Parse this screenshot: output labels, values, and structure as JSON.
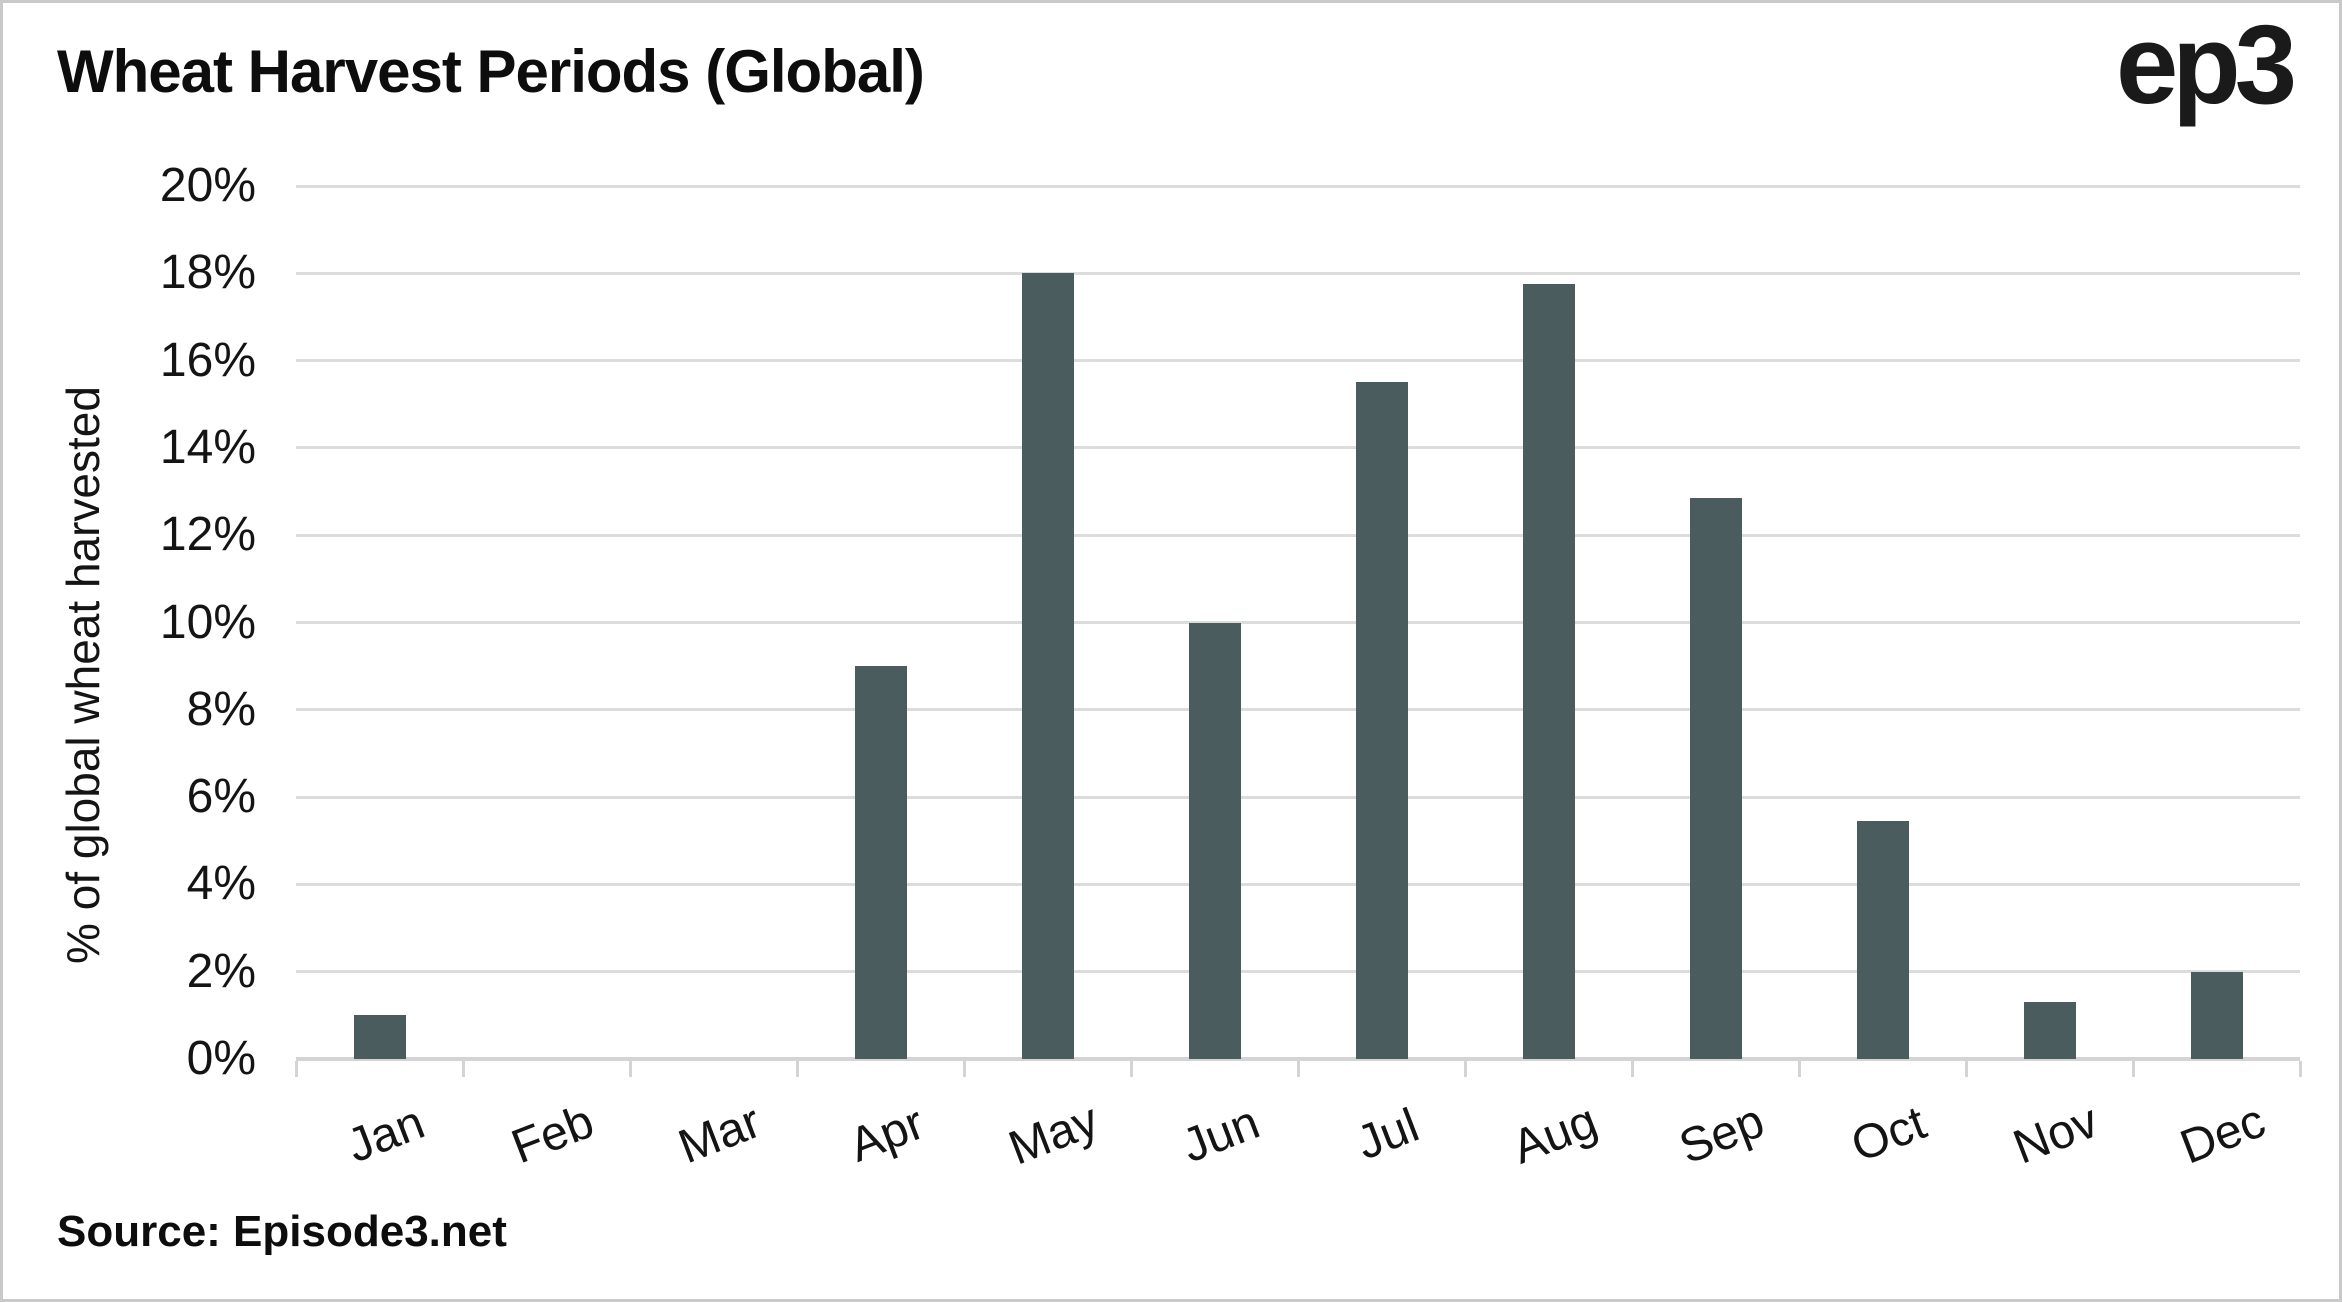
{
  "header": {
    "title": "Wheat Harvest Periods (Global)",
    "logo": "ep3"
  },
  "footer": {
    "source": "Source: Episode3.net"
  },
  "colors": {
    "bar": "#4b5c5f",
    "gridline": "#dcdcdc",
    "axis": "#d4d4d4",
    "text": "#141414"
  },
  "chart_data": {
    "type": "bar",
    "title": "Wheat Harvest Periods (Global)",
    "categories": [
      "Jan",
      "Feb",
      "Mar",
      "Apr",
      "May",
      "Jun",
      "Jul",
      "Aug",
      "Sep",
      "Oct",
      "Nov",
      "Dec"
    ],
    "values": [
      1,
      0,
      0,
      9,
      18,
      10,
      15.5,
      17.75,
      12.85,
      5.45,
      1.3,
      2
    ],
    "xlabel": "",
    "ylabel": "% of global wheat harvested",
    "ylim": [
      0,
      20
    ],
    "ytick_step": 2,
    "ytick_suffix": "%",
    "grid": true,
    "legend": false
  }
}
